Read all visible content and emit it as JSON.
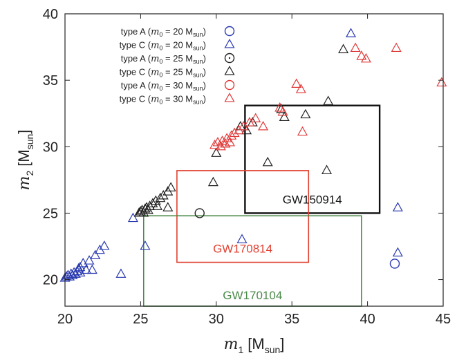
{
  "chart_data": {
    "type": "scatter",
    "xlim": [
      20,
      45
    ],
    "ylim": [
      18,
      40
    ],
    "xticks": [
      20,
      25,
      30,
      35,
      40,
      45
    ],
    "yticks": [
      20,
      25,
      30,
      35,
      40
    ],
    "xlabel": {
      "var": "m",
      "sub": "1",
      "unit": "[M",
      "unit_sub": "sun",
      "close": "]"
    },
    "ylabel": {
      "var": "m",
      "sub": "2",
      "unit": "[M",
      "unit_sub": "sun",
      "close": "]"
    },
    "series": [
      {
        "name": "type A (m0 = 20 Msun)",
        "legend": {
          "pre": "type A (",
          "var": "m",
          "sub": "0",
          "mid": " = 20 M",
          "unit_sub": "sun",
          "post": ")"
        },
        "marker": "circle",
        "color": "#2b3bb0",
        "points": [
          [
            41.8,
            21.2
          ]
        ]
      },
      {
        "name": "type C (m0 = 20 Msun)",
        "legend": {
          "pre": "type C (",
          "var": "m",
          "sub": "0",
          "mid": " = 20 M",
          "unit_sub": "sun",
          "post": ")"
        },
        "marker": "triangle",
        "color": "#2b3bb0",
        "points": [
          [
            20.0,
            20.1
          ],
          [
            20.1,
            20.2
          ],
          [
            20.2,
            20.3
          ],
          [
            20.3,
            20.2
          ],
          [
            20.4,
            20.4
          ],
          [
            20.5,
            20.3
          ],
          [
            20.6,
            20.5
          ],
          [
            20.7,
            20.4
          ],
          [
            20.8,
            20.6
          ],
          [
            20.9,
            20.8
          ],
          [
            21.0,
            20.5
          ],
          [
            21.0,
            20.9
          ],
          [
            21.2,
            21.2
          ],
          [
            21.4,
            20.7
          ],
          [
            21.6,
            21.4
          ],
          [
            21.8,
            20.7
          ],
          [
            22.0,
            21.8
          ],
          [
            22.3,
            22.2
          ],
          [
            22.6,
            22.5
          ],
          [
            23.7,
            20.4
          ],
          [
            24.5,
            24.6
          ],
          [
            25.3,
            22.5
          ],
          [
            31.7,
            23.0
          ],
          [
            38.9,
            38.5
          ],
          [
            42.0,
            25.4
          ],
          [
            42.0,
            22.0
          ]
        ]
      },
      {
        "name": "type A (m0 = 25 Msun)",
        "legend": {
          "pre": "type A (",
          "var": "m",
          "sub": "0",
          "mid": " = 25 M",
          "unit_sub": "sun",
          "post": ")"
        },
        "marker": "circle",
        "color": "#222222",
        "points": [
          [
            28.9,
            25.0
          ]
        ]
      },
      {
        "name": "type C (m0 = 25 Msun)",
        "legend": {
          "pre": "type C (",
          "var": "m",
          "sub": "0",
          "mid": " = 25 M",
          "unit_sub": "sun",
          "post": ")"
        },
        "marker": "triangle",
        "color": "#222222",
        "points": [
          [
            24.9,
            25.0
          ],
          [
            25.0,
            25.1
          ],
          [
            25.1,
            25.2
          ],
          [
            25.2,
            25.0
          ],
          [
            25.3,
            25.3
          ],
          [
            25.4,
            25.4
          ],
          [
            25.5,
            25.2
          ],
          [
            25.6,
            25.5
          ],
          [
            25.8,
            25.7
          ],
          [
            26.0,
            25.9
          ],
          [
            26.1,
            25.5
          ],
          [
            26.3,
            26.1
          ],
          [
            26.5,
            26.3
          ],
          [
            26.8,
            26.6
          ],
          [
            27.0,
            26.9
          ],
          [
            26.8,
            25.4
          ],
          [
            29.8,
            27.3
          ],
          [
            30.0,
            29.5
          ],
          [
            31.6,
            31.5
          ],
          [
            32.0,
            31.2
          ],
          [
            32.4,
            31.8
          ],
          [
            33.4,
            28.8
          ],
          [
            34.3,
            32.8
          ],
          [
            34.5,
            32.2
          ],
          [
            35.9,
            32.4
          ],
          [
            37.3,
            28.2
          ],
          [
            37.4,
            33.4
          ],
          [
            38.4,
            37.3
          ]
        ]
      },
      {
        "name": "type A (m0 = 30 Msun)",
        "legend": {
          "pre": "type A (",
          "var": "m",
          "sub": "0",
          "mid": " = 30 M",
          "unit_sub": "sun",
          "post": ")"
        },
        "marker": "circle",
        "color": "#e03a3a",
        "points": []
      },
      {
        "name": "type C (m0 = 30 Msun)",
        "legend": {
          "pre": "type C (",
          "var": "m",
          "sub": "0",
          "mid": " = 30 M",
          "unit_sub": "sun",
          "post": ")"
        },
        "marker": "triangle",
        "color": "#e03a3a",
        "points": [
          [
            29.9,
            30.1
          ],
          [
            30.1,
            30.3
          ],
          [
            30.3,
            30.0
          ],
          [
            30.4,
            30.4
          ],
          [
            30.6,
            30.2
          ],
          [
            30.7,
            30.6
          ],
          [
            30.9,
            30.3
          ],
          [
            31.0,
            30.8
          ],
          [
            31.2,
            31.0
          ],
          [
            31.5,
            31.2
          ],
          [
            31.8,
            31.5
          ],
          [
            32.2,
            31.8
          ],
          [
            32.6,
            32.1
          ],
          [
            33.1,
            31.5
          ],
          [
            34.2,
            32.9
          ],
          [
            34.4,
            32.6
          ],
          [
            35.3,
            34.7
          ],
          [
            35.6,
            34.3
          ],
          [
            35.7,
            31.1
          ],
          [
            39.2,
            37.4
          ],
          [
            39.6,
            36.8
          ],
          [
            39.9,
            36.6
          ],
          [
            41.9,
            37.4
          ],
          [
            44.9,
            34.8
          ]
        ]
      }
    ],
    "regions": [
      {
        "label": "GW150914",
        "color": "#111111",
        "x": [
          31.9,
          40.8
        ],
        "y": [
          25.0,
          33.1
        ]
      },
      {
        "label": "GW170814",
        "color": "#e04030",
        "x": [
          27.4,
          36.1
        ],
        "y": [
          21.3,
          28.2
        ]
      },
      {
        "label": "GW170104",
        "color": "#4a8a4a",
        "x": [
          25.2,
          39.6
        ],
        "y": [
          18.0,
          24.8
        ]
      }
    ],
    "legend_position": "top-left"
  }
}
